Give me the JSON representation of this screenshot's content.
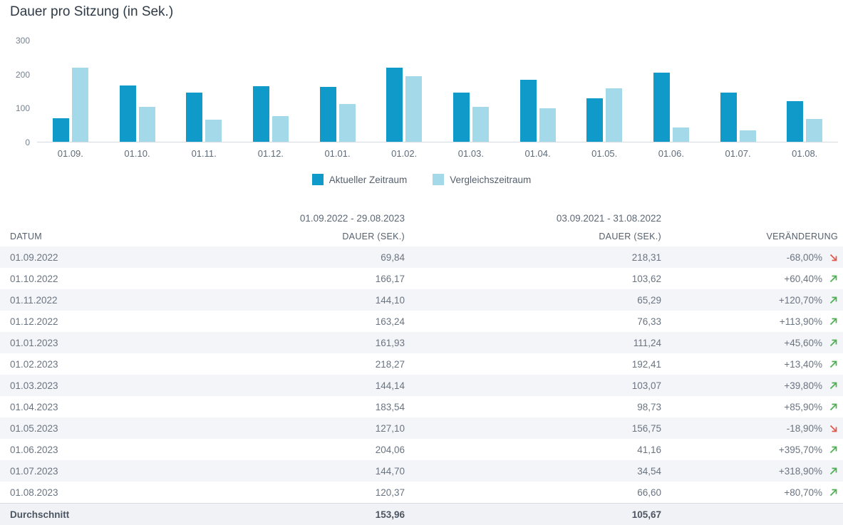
{
  "title": "Dauer pro Sitzung (in Sek.)",
  "chart_data": {
    "type": "bar",
    "title": "Dauer pro Sitzung (in Sek.)",
    "categories": [
      "01.09.",
      "01.10.",
      "01.11.",
      "01.12.",
      "01.01.",
      "01.02.",
      "01.03.",
      "01.04.",
      "01.05.",
      "01.06.",
      "01.07.",
      "01.08."
    ],
    "series": [
      {
        "name": "Aktueller Zeitraum",
        "color": "#0f9aca",
        "values": [
          69.84,
          166.17,
          144.1,
          163.24,
          161.93,
          218.27,
          144.14,
          183.54,
          127.1,
          204.06,
          144.7,
          120.37
        ]
      },
      {
        "name": "Vergleichszeitraum",
        "color": "#a3d9e9",
        "values": [
          218.31,
          103.62,
          65.29,
          76.33,
          111.24,
          192.41,
          103.07,
          98.73,
          156.75,
          41.16,
          34.54,
          66.6
        ]
      }
    ],
    "xlabel": "",
    "ylabel": "",
    "ylim": [
      0,
      300
    ],
    "yticks": [
      0,
      100,
      200,
      300
    ],
    "grid": false,
    "legend_position": "bottom"
  },
  "table": {
    "period_headers": [
      "01.09.2022 - 29.08.2023",
      "03.09.2021 - 31.08.2022"
    ],
    "columns": [
      "DATUM",
      "DAUER (SEK.)",
      "DAUER (SEK.)",
      "VERÄNDERUNG"
    ],
    "rows": [
      {
        "date": "01.09.2022",
        "current": "69,84",
        "comparison": "218,31",
        "change": "-68,00%",
        "trend": "down"
      },
      {
        "date": "01.10.2022",
        "current": "166,17",
        "comparison": "103,62",
        "change": "+60,40%",
        "trend": "up"
      },
      {
        "date": "01.11.2022",
        "current": "144,10",
        "comparison": "65,29",
        "change": "+120,70%",
        "trend": "up"
      },
      {
        "date": "01.12.2022",
        "current": "163,24",
        "comparison": "76,33",
        "change": "+113,90%",
        "trend": "up"
      },
      {
        "date": "01.01.2023",
        "current": "161,93",
        "comparison": "111,24",
        "change": "+45,60%",
        "trend": "up"
      },
      {
        "date": "01.02.2023",
        "current": "218,27",
        "comparison": "192,41",
        "change": "+13,40%",
        "trend": "up"
      },
      {
        "date": "01.03.2023",
        "current": "144,14",
        "comparison": "103,07",
        "change": "+39,80%",
        "trend": "up"
      },
      {
        "date": "01.04.2023",
        "current": "183,54",
        "comparison": "98,73",
        "change": "+85,90%",
        "trend": "up"
      },
      {
        "date": "01.05.2023",
        "current": "127,10",
        "comparison": "156,75",
        "change": "-18,90%",
        "trend": "down"
      },
      {
        "date": "01.06.2023",
        "current": "204,06",
        "comparison": "41,16",
        "change": "+395,70%",
        "trend": "up"
      },
      {
        "date": "01.07.2023",
        "current": "144,70",
        "comparison": "34,54",
        "change": "+318,90%",
        "trend": "up"
      },
      {
        "date": "01.08.2023",
        "current": "120,37",
        "comparison": "66,60",
        "change": "+80,70%",
        "trend": "up"
      }
    ],
    "footer": {
      "label": "Durchschnitt",
      "current": "153,96",
      "comparison": "105,67"
    }
  },
  "colors": {
    "current_bar": "#0f9aca",
    "comparison_bar": "#a3d9e9",
    "trend_up": "#4caf50",
    "trend_down": "#e2574c",
    "row_alt": "#f4f5f8",
    "axis_line": "#d4dae0"
  },
  "icons": {
    "trend_up": "arrow-up-right-icon",
    "trend_down": "arrow-down-right-icon"
  }
}
